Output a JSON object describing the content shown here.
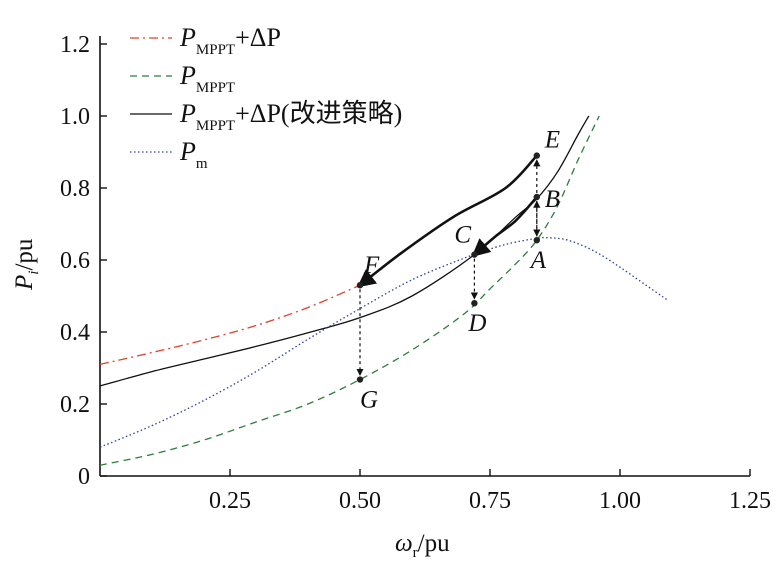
{
  "chart_data": {
    "type": "line",
    "xlabel": {
      "main": "ω",
      "sub": "r",
      "unit": "/pu"
    },
    "ylabel": {
      "main": "P",
      "sub": "i",
      "unit": "/pu"
    },
    "xlim": [
      0,
      1.25
    ],
    "ylim": [
      0,
      1.2
    ],
    "xticks": [
      0.25,
      0.5,
      0.75,
      1.0,
      1.25
    ],
    "xtick_labels": [
      "0.25",
      "0.50",
      "0.75",
      "1.00",
      "1.25"
    ],
    "yticks": [
      0,
      0.2,
      0.4,
      0.6,
      0.8,
      1.0,
      1.2
    ],
    "ytick_labels": [
      "0",
      "0.2",
      "0.4",
      "0.6",
      "0.8",
      "1.0",
      "1.2"
    ],
    "grid": false,
    "legend_position": "top-left",
    "series": [
      {
        "id": "mppt_dp",
        "legend": {
          "main": "P",
          "sub": "MPPT",
          "suffix": "+ΔP"
        },
        "color": "#d9432b",
        "style": "dashdot",
        "x": [
          0.0,
          0.1,
          0.2,
          0.3,
          0.4,
          0.5
        ],
        "y": [
          0.31,
          0.343,
          0.378,
          0.418,
          0.468,
          0.53
        ]
      },
      {
        "id": "mppt",
        "legend": {
          "main": "P",
          "sub": "MPPT",
          "suffix": ""
        },
        "color": "#2e7d3e",
        "style": "dashed",
        "x": [
          0.0,
          0.1,
          0.2,
          0.3,
          0.4,
          0.5,
          0.6,
          0.7,
          0.75,
          0.8,
          0.84,
          0.88,
          0.92,
          0.96
        ],
        "y": [
          0.03,
          0.06,
          0.1,
          0.15,
          0.2,
          0.268,
          0.35,
          0.45,
          0.52,
          0.59,
          0.655,
          0.75,
          0.88,
          1.0
        ]
      },
      {
        "id": "mppt_dp_improved",
        "legend": {
          "main": "P",
          "sub": "MPPT",
          "suffix": "+ΔP(改进策略)"
        },
        "color": "#111111",
        "style": "solid",
        "x": [
          0.0,
          0.1,
          0.2,
          0.3,
          0.4,
          0.5,
          0.6,
          0.72,
          0.8,
          0.84,
          0.88,
          0.92,
          0.94
        ],
        "y": [
          0.25,
          0.29,
          0.325,
          0.36,
          0.398,
          0.44,
          0.5,
          0.615,
          0.72,
          0.77,
          0.845,
          0.95,
          1.0
        ]
      },
      {
        "id": "pm",
        "legend": {
          "main": "P",
          "sub": "m",
          "suffix": ""
        },
        "color": "#2b3e9e",
        "style": "dotted",
        "x": [
          0.0,
          0.1,
          0.2,
          0.3,
          0.4,
          0.5,
          0.6,
          0.7,
          0.76,
          0.8,
          0.84,
          0.86,
          0.9,
          0.95,
          1.0,
          1.05,
          1.09
        ],
        "y": [
          0.08,
          0.14,
          0.21,
          0.29,
          0.38,
          0.465,
          0.545,
          0.605,
          0.635,
          0.65,
          0.66,
          0.662,
          0.655,
          0.625,
          0.58,
          0.53,
          0.49
        ]
      }
    ],
    "points": [
      {
        "label": "E",
        "x": 0.84,
        "y": 0.89,
        "dx": 8,
        "dy": -8
      },
      {
        "label": "B",
        "x": 0.84,
        "y": 0.775,
        "dx": 8,
        "dy": 10
      },
      {
        "label": "A",
        "x": 0.84,
        "y": 0.655,
        "dx": -6,
        "dy": 28
      },
      {
        "label": "C",
        "x": 0.72,
        "y": 0.615,
        "dx": -20,
        "dy": -12
      },
      {
        "label": "D",
        "x": 0.72,
        "y": 0.48,
        "dx": -6,
        "dy": 28
      },
      {
        "label": "F",
        "x": 0.5,
        "y": 0.53,
        "dx": 4,
        "dy": -12
      },
      {
        "label": "G",
        "x": 0.5,
        "y": 0.268,
        "dx": 0,
        "dy": 28
      }
    ],
    "transitions": [
      {
        "from": "A",
        "to": "B",
        "type": "dashed-arrow"
      },
      {
        "from": "B",
        "to": "E",
        "type": "dashed-arrow"
      },
      {
        "from": "B",
        "to": "A",
        "type": "dashed-arrow"
      },
      {
        "from": "C",
        "to": "D",
        "type": "dashed-arrow"
      },
      {
        "from": "F",
        "to": "G",
        "type": "dashed-arrow"
      },
      {
        "from": "E",
        "to": "F",
        "type": "bold-arrow",
        "curve": [
          [
            0.84,
            0.89
          ],
          [
            0.78,
            0.8
          ],
          [
            0.68,
            0.72
          ],
          [
            0.58,
            0.62
          ],
          [
            0.5,
            0.53
          ]
        ]
      },
      {
        "from": "B",
        "to": "C",
        "type": "bold-arrow",
        "curve": [
          [
            0.84,
            0.775
          ],
          [
            0.8,
            0.71
          ],
          [
            0.76,
            0.665
          ],
          [
            0.72,
            0.615
          ]
        ]
      }
    ]
  }
}
